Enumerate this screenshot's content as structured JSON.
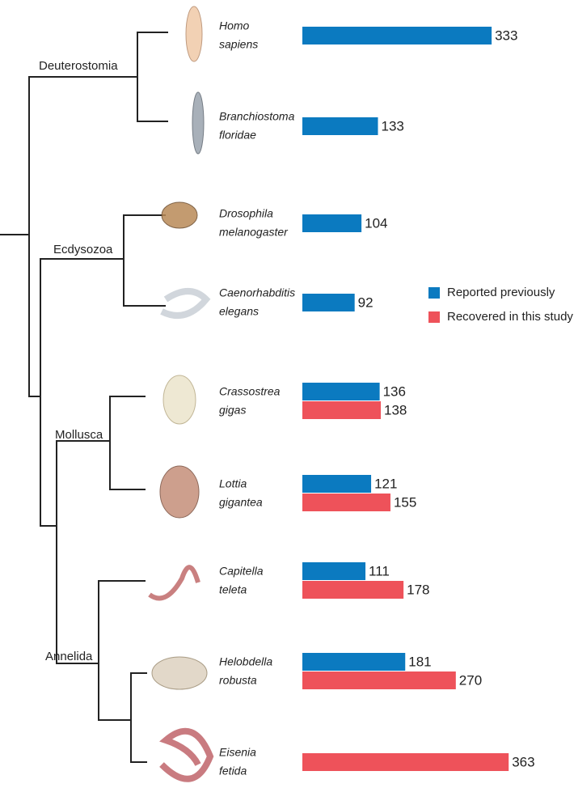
{
  "chart_data": {
    "type": "bar",
    "orientation": "horizontal",
    "categories": [
      "Homo sapiens",
      "Branchiostoma floridae",
      "Drosophila melanogaster",
      "Caenorhabditis elegans",
      "Crassostrea gigas",
      "Lottia gigantea",
      "Capitella teleta",
      "Helobdella robusta",
      "Eisenia fetida"
    ],
    "series": [
      {
        "name": "Reported previously",
        "color": "#0b7ac0",
        "values": [
          333,
          133,
          104,
          92,
          136,
          121,
          111,
          181,
          null
        ]
      },
      {
        "name": "Recovered in this study",
        "color": "#ee525a",
        "values": [
          null,
          null,
          null,
          null,
          138,
          155,
          178,
          270,
          363
        ]
      }
    ],
    "clades": [
      "Deuterostomia",
      "Ecdysozoa",
      "Mollusca",
      "Annelida"
    ]
  }
}
